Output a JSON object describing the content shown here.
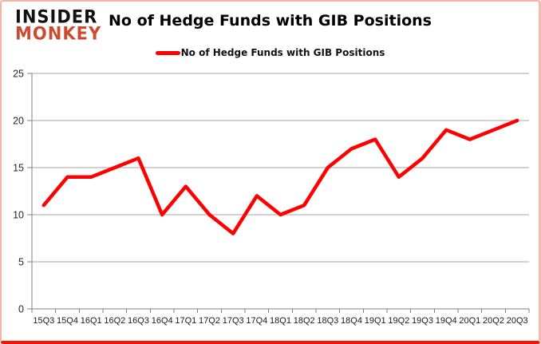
{
  "header": {
    "logo_line1": "INSIDER",
    "logo_line2": "MONKEY",
    "title": "No of Hedge Funds with GIB Positions"
  },
  "legend": {
    "label": "No of Hedge Funds with GIB Positions"
  },
  "colors": {
    "line": "#ff0000",
    "logo_red": "#cb4a30",
    "grid": "#a6a6a6",
    "axis": "#808080",
    "border_glow": "#fb1004"
  },
  "chart_data": {
    "type": "line",
    "title": "No of Hedge Funds with GIB Positions",
    "categories": [
      "15Q3",
      "15Q4",
      "16Q1",
      "16Q2",
      "16Q3",
      "16Q4",
      "17Q1",
      "17Q2",
      "17Q3",
      "17Q4",
      "18Q1",
      "18Q2",
      "18Q3",
      "18Q4",
      "19Q1",
      "19Q2",
      "19Q3",
      "19Q4",
      "20Q1",
      "20Q2",
      "20Q3"
    ],
    "series": [
      {
        "name": "No of Hedge Funds with GIB Positions",
        "values": [
          11,
          14,
          14,
          15,
          16,
          10,
          13,
          10,
          8,
          12,
          10,
          11,
          15,
          17,
          18,
          14,
          16,
          19,
          18,
          19,
          20
        ]
      }
    ],
    "xlabel": "",
    "ylabel": "",
    "ylim": [
      0,
      25
    ],
    "yticks": [
      0,
      5,
      10,
      15,
      20,
      25
    ],
    "grid": true,
    "legend_position": "top-center"
  }
}
